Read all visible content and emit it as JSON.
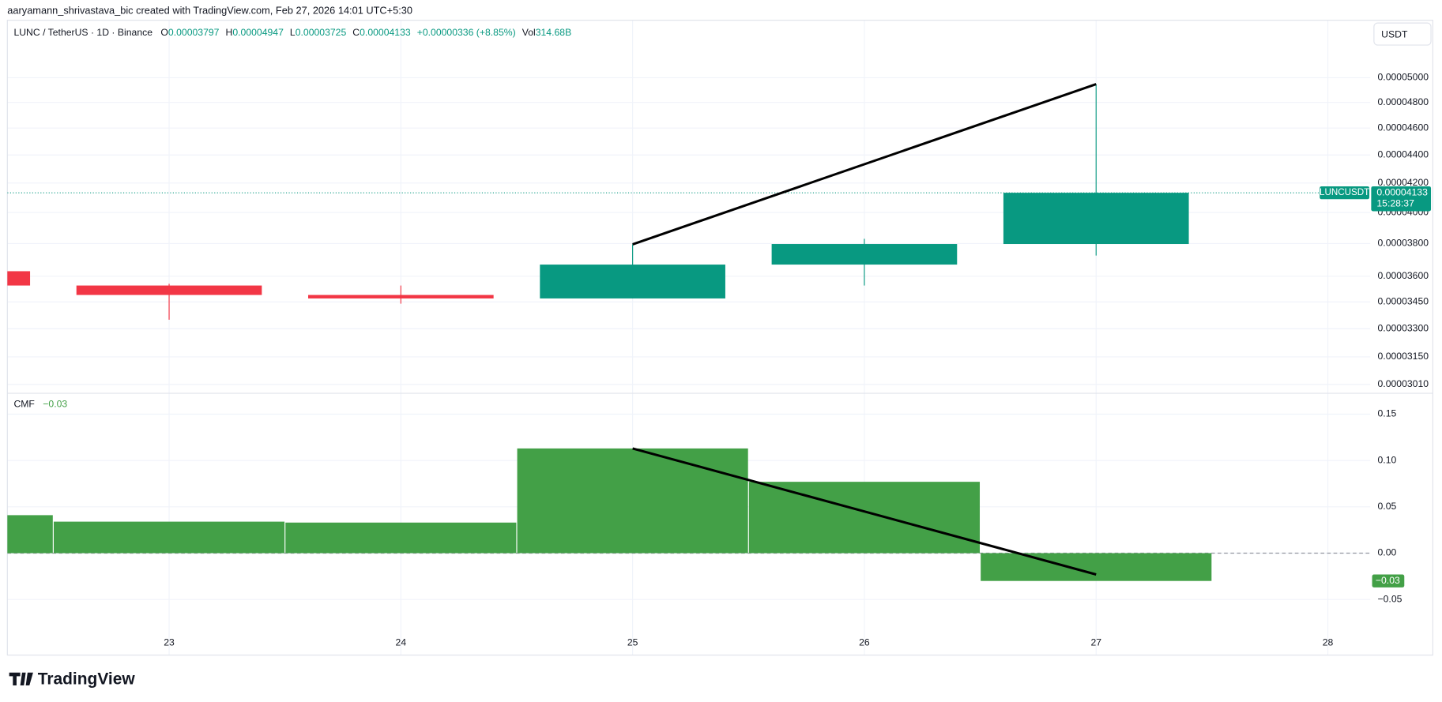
{
  "header": {
    "credit": "aaryamann_shrivastava_bic created with TradingView.com, Feb 27, 2026 14:01 UTC+5:30",
    "logo": "TradingView"
  },
  "chart_data": [
    {
      "type": "candlestick",
      "title": "LUNC / TetherUS · 1D · Binance",
      "legend": [
        {
          "label": "O",
          "value": 3.797e-05
        },
        {
          "label": "H",
          "value": 4.947e-05
        },
        {
          "label": "L",
          "value": 3.725e-05
        },
        {
          "label": "C",
          "value": 4.133e-05
        }
      ],
      "change": "+0.00000336 (+8.85%)",
      "volume_label": "Vol",
      "volume": "314.68B",
      "currency": "USDT",
      "last_price": {
        "symbol": "LUNCUSDT",
        "value": 4.133e-05,
        "countdown": "15:28:37"
      },
      "x": [
        22,
        23,
        24,
        25,
        26,
        27
      ],
      "open": [
        3.63e-05,
        3.545e-05,
        3.49e-05,
        3.47e-05,
        3.67e-05,
        3.797e-05
      ],
      "high": [
        3.63e-05,
        3.555e-05,
        3.545e-05,
        3.795e-05,
        3.83e-05,
        4.947e-05
      ],
      "low": [
        3.545e-05,
        3.35e-05,
        3.44e-05,
        3.47e-05,
        3.545e-05,
        3.725e-05
      ],
      "close": [
        3.545e-05,
        3.49e-05,
        3.47e-05,
        3.67e-05,
        3.797e-05,
        4.133e-05
      ],
      "up_color": "#089981",
      "down_color": "#f23645",
      "trendline": {
        "x": [
          25,
          27
        ],
        "y": [
          3.795e-05,
          4.947e-05
        ],
        "color": "#000000"
      },
      "xlim": [
        22.302,
        28.183
      ],
      "xticks": [
        23,
        24,
        25,
        26,
        27,
        28
      ],
      "log_scale": true,
      "ylim": [
        2.968e-05,
        5.499e-05
      ],
      "yticks": [
        {
          "value": 3.01e-05,
          "label": "0.00003010"
        },
        {
          "value": 3.15e-05,
          "label": "0.00003150"
        },
        {
          "value": 3.3e-05,
          "label": "0.00003300"
        },
        {
          "value": 3.45e-05,
          "label": "0.00003450"
        },
        {
          "value": 3.6e-05,
          "label": "0.00003600"
        },
        {
          "value": 3.8e-05,
          "label": "0.00003800"
        },
        {
          "value": 4e-05,
          "label": "0.00004000"
        },
        {
          "value": 4.2e-05,
          "label": "0.00004200"
        },
        {
          "value": 4.4e-05,
          "label": "0.00004400"
        },
        {
          "value": 4.6e-05,
          "label": "0.00004600"
        },
        {
          "value": 4.8e-05,
          "label": "0.00004800"
        },
        {
          "value": 5e-05,
          "label": "0.00005000"
        }
      ],
      "grid": true
    },
    {
      "type": "bar",
      "title": "CMF",
      "value_label": "−0.03",
      "x": [
        22,
        23,
        24,
        25,
        26,
        27
      ],
      "values": [
        0.041,
        0.034,
        0.033,
        0.113,
        0.077,
        -0.03
      ],
      "color": "#43a047",
      "trendline": {
        "x": [
          25,
          27
        ],
        "y": [
          0.113,
          -0.023
        ],
        "color": "#000000"
      },
      "xlim": [
        22.302,
        28.183
      ],
      "xticks": [
        23,
        24,
        25,
        26,
        27,
        28
      ],
      "ylim": [
        -0.11,
        0.172
      ],
      "yticks": [
        {
          "value": -0.05,
          "label": "−0.05"
        },
        {
          "value": 0,
          "label": "0.00"
        },
        {
          "value": 0.05,
          "label": "0.05"
        },
        {
          "value": 0.1,
          "label": "0.10"
        },
        {
          "value": 0.15,
          "label": "0.15"
        }
      ],
      "grid": true
    }
  ]
}
